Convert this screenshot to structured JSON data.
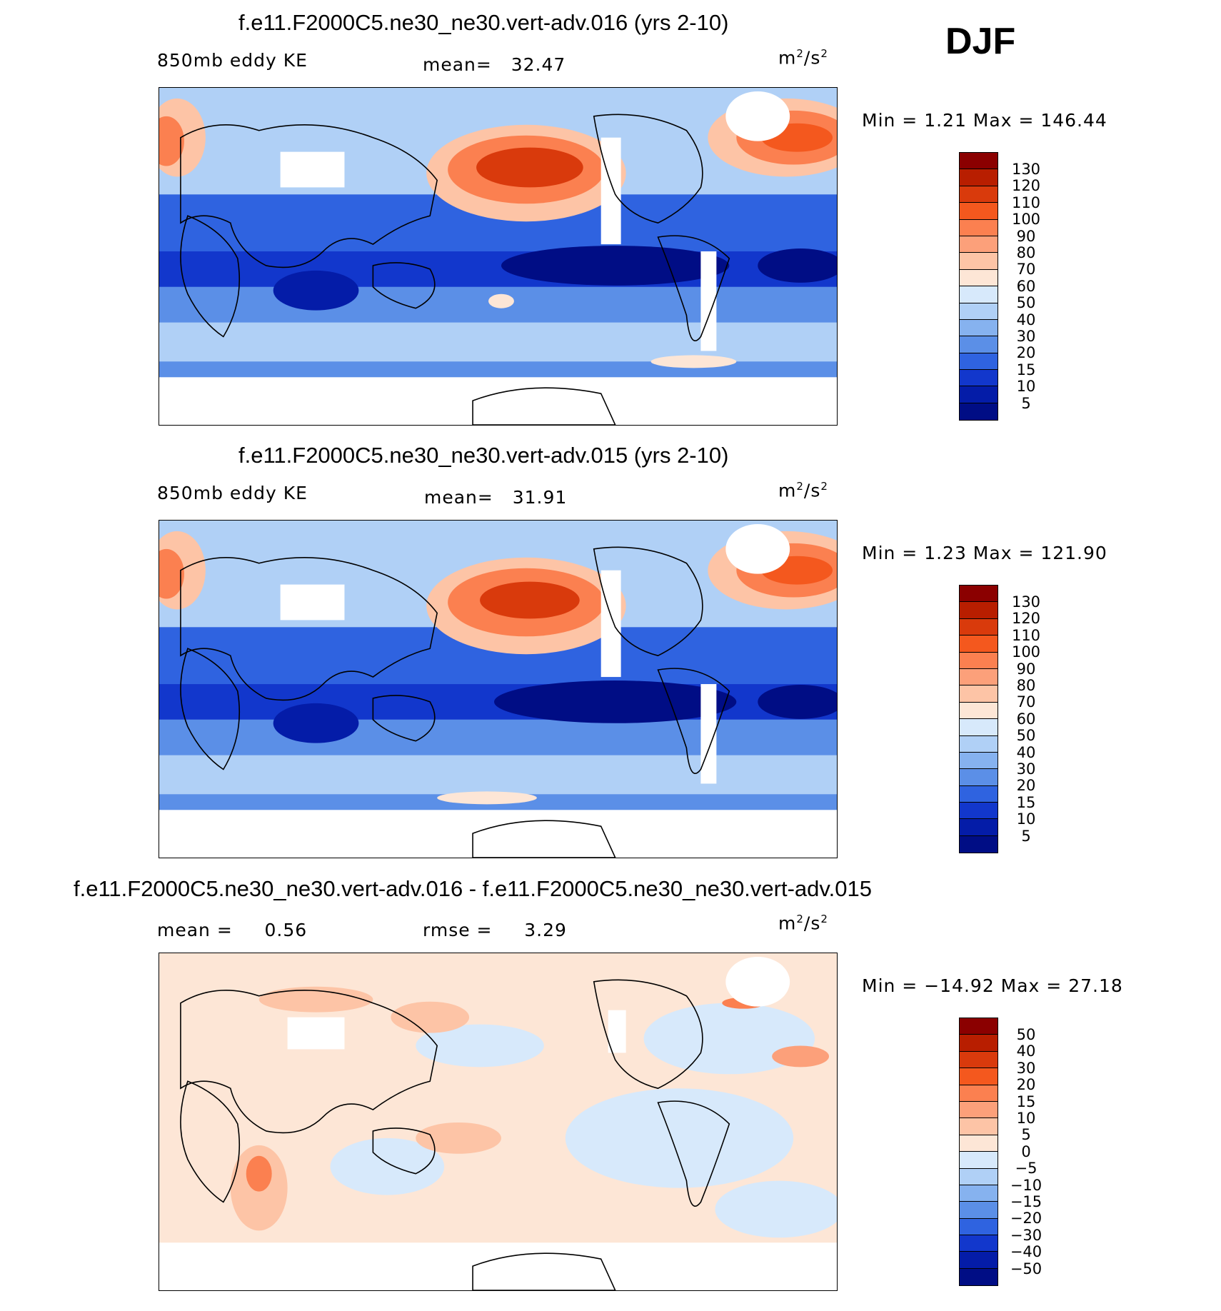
{
  "season": "DJF",
  "units_base": "m",
  "units_mid": "/s",
  "units_exp": "2",
  "panels": [
    {
      "title": "f.e11.F2000C5.ne30_ne30.vert-adv.016 (yrs 2-10)",
      "left_label": "850mb eddy KE",
      "stat1_label": "mean=",
      "stat1_value": "32.47",
      "minmax": "Min =     1.21  Max  =  146.44",
      "levels": [
        "130",
        "120",
        "110",
        "100",
        "90",
        "80",
        "70",
        "60",
        "50",
        "40",
        "30",
        "20",
        "15",
        "10",
        "5"
      ]
    },
    {
      "title": "f.e11.F2000C5.ne30_ne30.vert-adv.015 (yrs 2-10)",
      "left_label": "850mb eddy KE",
      "stat1_label": "mean=",
      "stat1_value": "31.91",
      "minmax": "Min =     1.23  Max  =  121.90",
      "levels": [
        "130",
        "120",
        "110",
        "100",
        "90",
        "80",
        "70",
        "60",
        "50",
        "40",
        "30",
        "20",
        "15",
        "10",
        "5"
      ]
    },
    {
      "title": "f.e11.F2000C5.ne30_ne30.vert-adv.016 - f.e11.F2000C5.ne30_ne30.vert-adv.015",
      "left_label": "mean =",
      "left_value": "0.56",
      "stat1_label": "rmse =",
      "stat1_value": "3.29",
      "minmax": "Min =  −14.92  Max =    27.18",
      "levels": [
        "50",
        "40",
        "30",
        "20",
        "15",
        "10",
        "5",
        "0",
        "−5",
        "−10",
        "−15",
        "−20",
        "−30",
        "−40",
        "−50"
      ]
    }
  ],
  "colorbar_colors": [
    "#8b0000",
    "#b81e00",
    "#d93a0c",
    "#f4581e",
    "#fb8050",
    "#fca07a",
    "#fdc4a6",
    "#fde6d6",
    "#d7e9fb",
    "#b0d0f6",
    "#86b2ef",
    "#5b8fe7",
    "#2f63e0",
    "#1237cc",
    "#041ca8",
    "#000d85"
  ]
}
